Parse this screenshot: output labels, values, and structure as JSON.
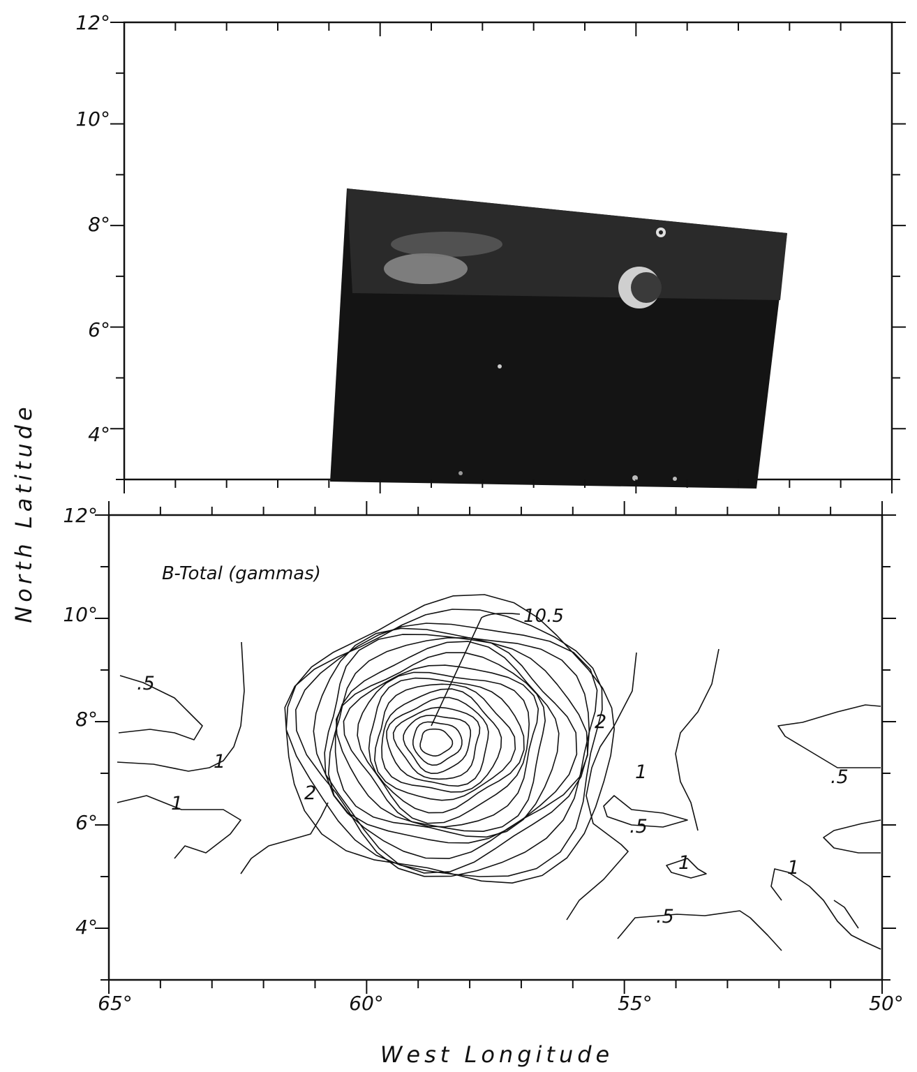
{
  "axes": {
    "y_label": "North Latitude",
    "x_label": "West Longitude",
    "y_ticks": [
      "12°",
      "10°",
      "8°",
      "6°",
      "4°"
    ],
    "y_tick_values": [
      12,
      10,
      8,
      6,
      4
    ],
    "x_ticks": [
      "65°",
      "60°",
      "55°",
      "50°"
    ],
    "x_tick_values": [
      65,
      60,
      55,
      50
    ]
  },
  "chart_data": [
    {
      "type": "image",
      "panel": "top",
      "content": "grayscale surface image mosaic",
      "xlim": [
        65,
        50
      ],
      "ylim": [
        3,
        12
      ],
      "y_ticks": [
        12,
        10,
        8,
        6,
        4
      ]
    },
    {
      "type": "contour",
      "panel": "bottom",
      "annotation": "B-Total (gammas)",
      "xlim": [
        65,
        50
      ],
      "ylim": [
        3,
        12
      ],
      "x_ticks": [
        65,
        60,
        55,
        50
      ],
      "y_ticks": [
        12,
        10,
        8,
        6,
        4
      ],
      "peak": {
        "label": "10.5",
        "lon": 58.7,
        "lat": 7.6
      },
      "contour_labels": [
        {
          "text": ".5",
          "lon": 64.3,
          "lat": 8.5
        },
        {
          "text": "1",
          "lon": 63.1,
          "lat": 7.0
        },
        {
          "text": "1",
          "lon": 64.1,
          "lat": 6.4
        },
        {
          "text": "2",
          "lon": 60.9,
          "lat": 6.6
        },
        {
          "text": "2",
          "lon": 55.3,
          "lat": 7.9
        },
        {
          "text": "1",
          "lon": 54.6,
          "lat": 7.0
        },
        {
          "text": ".5",
          "lon": 54.7,
          "lat": 5.8
        },
        {
          "text": "1",
          "lon": 54.0,
          "lat": 5.1
        },
        {
          "text": ".5",
          "lon": 54.2,
          "lat": 4.0
        },
        {
          "text": "1",
          "lon": 51.6,
          "lat": 5.1
        },
        {
          "text": ".5",
          "lon": 50.7,
          "lat": 6.8
        }
      ]
    }
  ]
}
